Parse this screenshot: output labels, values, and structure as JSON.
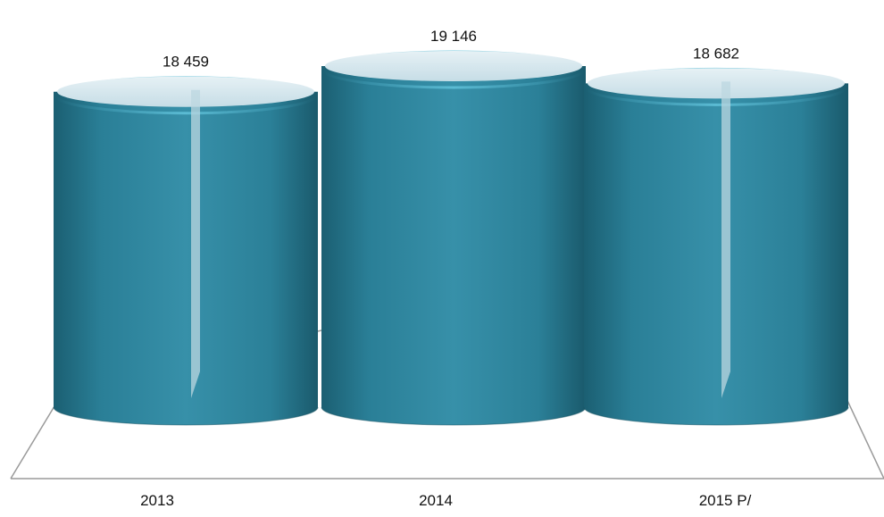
{
  "chart_data": {
    "type": "bar",
    "bar_style": "3d-cylinder",
    "categories": [
      "2013",
      "2014",
      "2015 P/"
    ],
    "values": [
      18459,
      19146,
      18682
    ],
    "data_labels": [
      "18 459",
      "19 146",
      "18 682"
    ],
    "title": "",
    "xlabel": "",
    "ylabel": "",
    "grid": false,
    "legend": "none",
    "colors": {
      "bar": "#2f8aa3",
      "bar_dark": "#1a6378",
      "bar_top": "#d7e8ef",
      "floor_line": "#9a9a9a"
    }
  }
}
